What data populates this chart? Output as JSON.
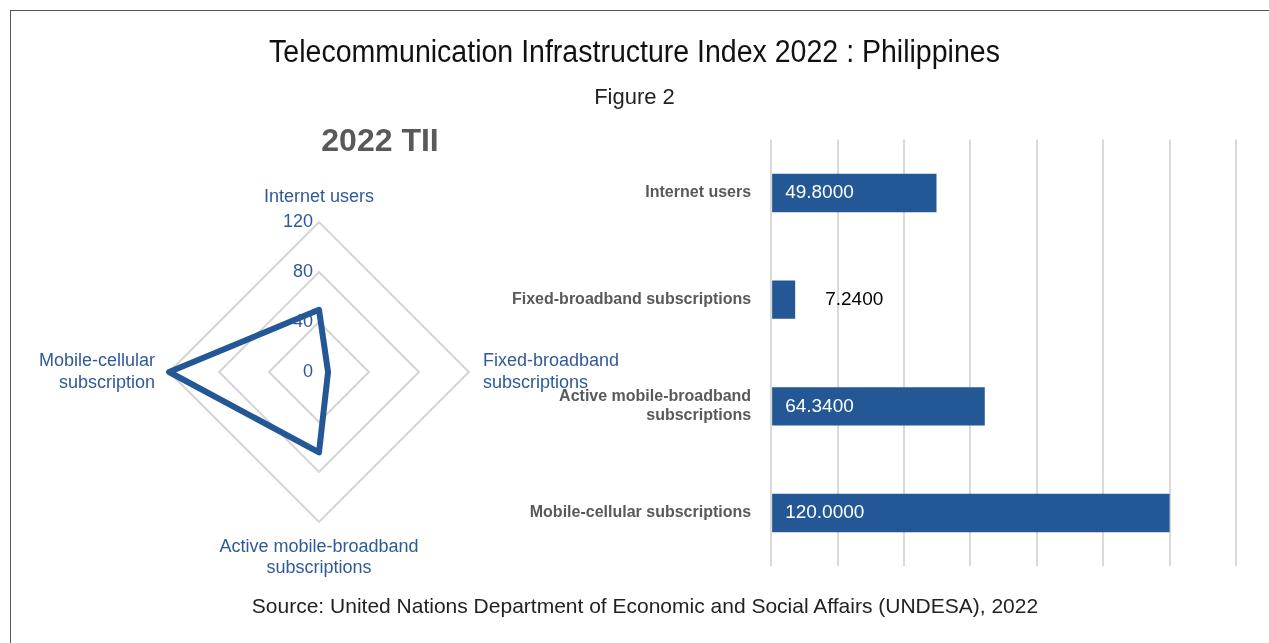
{
  "chart_data": [
    {
      "type": "other",
      "title": "Telecommunication Infrastructure Index 2022 : Philippines",
      "subtitle": "Figure 2",
      "annotations": [
        "Source: United Nations Department of Economic and Social Affairs (UNDESA), 2022"
      ]
    },
    {
      "type": "radar",
      "title": "2022 TII",
      "categories": [
        "Internet users",
        "Fixed-broadband subscriptions",
        "Active mobile-broadband subscriptions",
        "Mobile-cellular subscription"
      ],
      "ylim": [
        0,
        120
      ],
      "yticks": [
        0,
        40,
        80,
        120
      ],
      "grid": true,
      "marker": "none",
      "series": [
        {
          "color": "#245796",
          "values": [
            49.8,
            7.24,
            64.34,
            120
          ]
        }
      ]
    },
    {
      "type": "bar",
      "orientation": "horizontal",
      "categories": [
        "Internet users",
        "Fixed-broadband subscriptions",
        "Active mobile-broadband subscriptions",
        "Mobile-cellular subscriptions"
      ],
      "xlim": [
        0,
        140
      ],
      "xticks": [
        {
          "value": 0,
          "label": null
        },
        {
          "value": 20,
          "label": null
        },
        {
          "value": 40,
          "label": null
        },
        {
          "value": 60,
          "label": null
        },
        {
          "value": 80,
          "label": null
        },
        {
          "value": 100,
          "label": null
        },
        {
          "value": 120,
          "label": null
        },
        {
          "value": 140,
          "label": null
        }
      ],
      "grid": "x",
      "tick_labels": "y",
      "series": [
        {
          "color": "#245796",
          "values": [
            49.8,
            7.24,
            64.34,
            120
          ],
          "value_labels": [
            "49.8000",
            "7.2400",
            "64.3400",
            "120.0000"
          ]
        }
      ]
    }
  ]
}
